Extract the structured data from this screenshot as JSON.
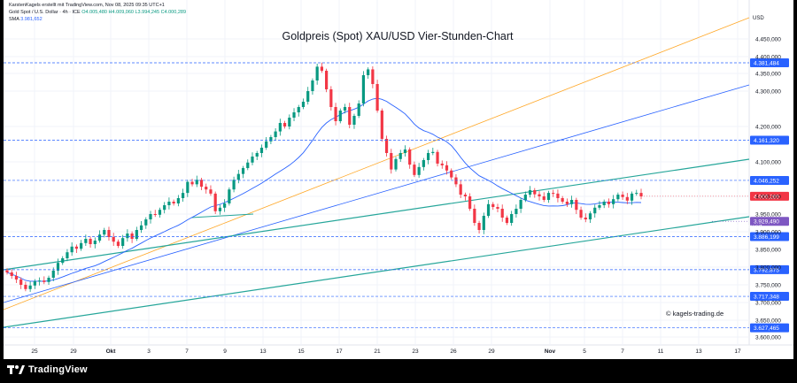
{
  "header": {
    "line1": "KarstenKagels erstellt mit TradingView.com, Nov 08, 2025 09:35 UTC+1",
    "symbol": "Gold Spot / U.S. Dollar · 4h · ICE",
    "open": "O4.005,480",
    "high": "H4.009,060",
    "low": "L3.994,245",
    "close": "C4.000,289",
    "sma_label": "SMA",
    "sma_value": "3.981,652"
  },
  "watermark": "© kagels-trading.de",
  "currency": "USD",
  "tv_name": "TradingView",
  "colors": {
    "up": "#089981",
    "down": "#f23645",
    "sma": "#2962ff",
    "level": "#2962ff",
    "trend": "#26a69a",
    "orange": "#ffa726",
    "current": "#f23645",
    "crossing": "#7e57c2"
  },
  "chart_data": {
    "type": "candlestick",
    "title": "Goldpreis (Spot) XAU/USD Vier-Stunden-Chart",
    "ylim": [
      3590,
      4550
    ],
    "y_ticks": [
      "3.600,000",
      "3.650,000",
      "3.700,000",
      "3.750,000",
      "3.800,000",
      "3.850,000",
      "3.900,000",
      "3.950,000",
      "4.000,000",
      "4.100,000",
      "4.200,000",
      "4.300,000",
      "4.350,000",
      "4.400,000",
      "4.450,000"
    ],
    "x_ticks": [
      "25",
      "29",
      "Okt",
      "3",
      "7",
      "9",
      "13",
      "15",
      "17",
      "21",
      "23",
      "26",
      "29",
      "Nov",
      "5",
      "7",
      "11",
      "13",
      "17"
    ],
    "levels": [
      {
        "value": 4381.484,
        "label": "4.381,484"
      },
      {
        "value": 4161.32,
        "label": "4.161,320"
      },
      {
        "value": 4046.252,
        "label": "4.046,252"
      },
      {
        "value": 3886.199,
        "label": "3.886,199"
      },
      {
        "value": 3792.875,
        "label": "3.792,875"
      },
      {
        "value": 3717.348,
        "label": "3.717,348"
      },
      {
        "value": 3627.465,
        "label": "3.627,465"
      }
    ],
    "current": {
      "value": 4000.289,
      "label": "4.000,289"
    },
    "crossing": {
      "value": 3929.49,
      "label": "3.929,490",
      "note": "Kreuzungswert"
    },
    "close_series": [
      3785,
      3775,
      3765,
      3750,
      3738,
      3748,
      3760,
      3762,
      3758,
      3770,
      3790,
      3812,
      3825,
      3842,
      3858,
      3852,
      3868,
      3880,
      3865,
      3875,
      3892,
      3905,
      3885,
      3872,
      3860,
      3882,
      3895,
      3880,
      3905,
      3918,
      3935,
      3950,
      3948,
      3962,
      3975,
      3985,
      3980,
      3995,
      4010,
      4042,
      4035,
      4048,
      4028,
      4020,
      4008,
      3958,
      3968,
      3980,
      4020,
      4048,
      4065,
      4082,
      4098,
      4115,
      4125,
      4140,
      4158,
      4170,
      4186,
      4210,
      4200,
      4225,
      4240,
      4255,
      4270,
      4300,
      4330,
      4370,
      4358,
      4305,
      4255,
      4215,
      4245,
      4255,
      4205,
      4230,
      4265,
      4345,
      4362,
      4320,
      4245,
      4165,
      4125,
      4078,
      4108,
      4125,
      4135,
      4092,
      4062,
      4085,
      4105,
      4125,
      4128,
      4095,
      4090,
      4075,
      4055,
      4035,
      4005,
      4000,
      3965,
      3925,
      3905,
      3945,
      3978,
      3970,
      3965,
      3940,
      3925,
      3950,
      3965,
      3990,
      4005,
      4018,
      4006,
      4000,
      3990,
      4010,
      4008,
      3995,
      3985,
      3978,
      3990,
      3962,
      3940,
      3935,
      3952,
      3968,
      3975,
      3985,
      3978,
      3992,
      4005,
      3998,
      3988,
      4008,
      4010,
      4000
    ]
  }
}
